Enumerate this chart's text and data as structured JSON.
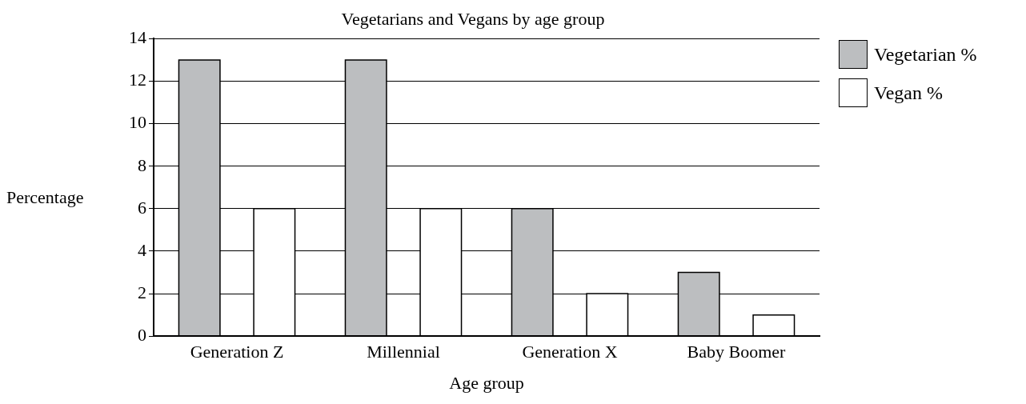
{
  "chart_data": {
    "type": "bar",
    "title": "Vegetarians and Vegans by age group",
    "xlabel": "Age group",
    "ylabel": "Percentage",
    "categories": [
      "Generation Z",
      "Millennial",
      "Generation X",
      "Baby Boomer"
    ],
    "series": [
      {
        "name": "Vegetarian %",
        "color": "#bcbec0",
        "values": [
          13,
          13,
          6,
          3
        ]
      },
      {
        "name": "Vegan %",
        "color": "#ffffff",
        "values": [
          6,
          6,
          2,
          1
        ]
      }
    ],
    "ylim": [
      0,
      14
    ],
    "yticks": [
      0,
      2,
      4,
      6,
      8,
      10,
      12,
      14
    ],
    "grid": "y",
    "legend": "top right"
  }
}
